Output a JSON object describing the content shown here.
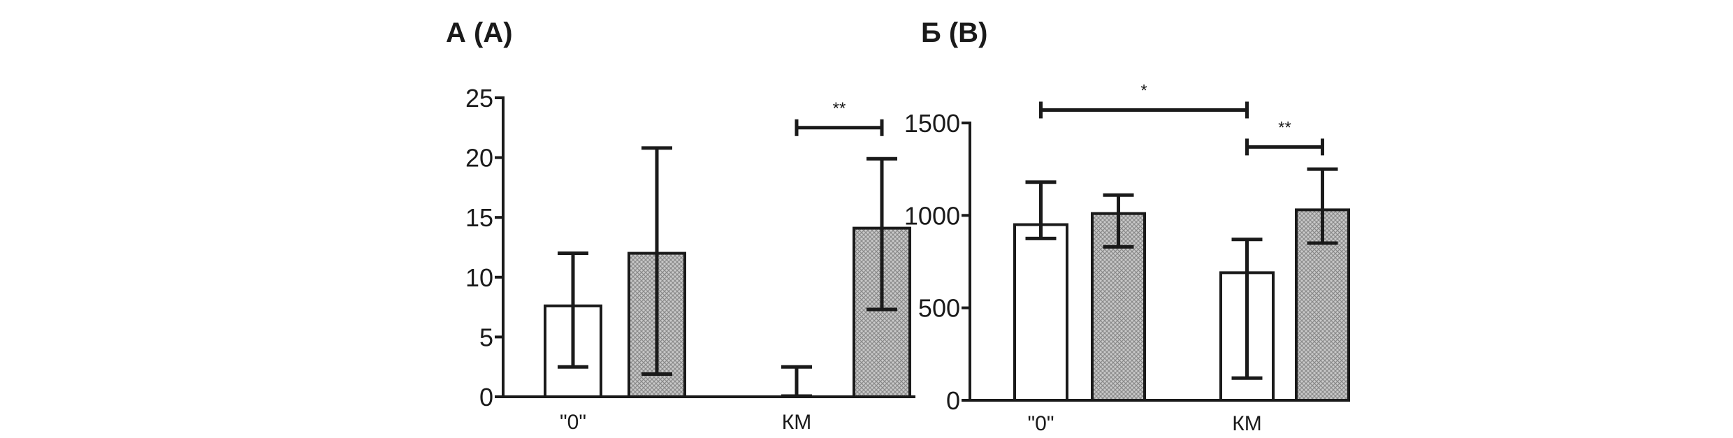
{
  "chart_data": [
    {
      "type": "bar",
      "title": "А (A)",
      "categories": [
        "\"0\"",
        "КМ"
      ],
      "ylim": [
        0,
        25
      ],
      "yticks": [
        0,
        5,
        10,
        15,
        20,
        25
      ],
      "series": [
        {
          "fill": "white",
          "values": [
            7.6,
            0
          ],
          "error_low": [
            2.5,
            0
          ],
          "error_high": [
            12.0,
            2.5
          ]
        },
        {
          "fill": "hatched",
          "values": [
            12.0,
            14.1
          ],
          "error_low": [
            1.9,
            7.3
          ],
          "error_high": [
            20.8,
            19.9
          ]
        }
      ],
      "significance": [
        {
          "label": "**",
          "category": 1,
          "from_series": 0,
          "to_series": 1,
          "level": 22.5
        }
      ]
    },
    {
      "type": "bar",
      "title": "Б (B)",
      "categories": [
        "\"0\"",
        "КМ"
      ],
      "ylim": [
        0,
        1500
      ],
      "yticks": [
        0,
        500,
        1000,
        1500
      ],
      "series": [
        {
          "fill": "white",
          "values": [
            950,
            690
          ],
          "error_low": [
            875,
            120
          ],
          "error_high": [
            1180,
            870
          ]
        },
        {
          "fill": "hatched",
          "values": [
            1010,
            1030
          ],
          "error_low": [
            830,
            850
          ],
          "error_high": [
            1110,
            1250
          ]
        }
      ],
      "significance": [
        {
          "label": "*",
          "from_category": 0,
          "from_series": 0,
          "to_category": 1,
          "to_series": 0,
          "level": 1570
        },
        {
          "label": "**",
          "category": 1,
          "from_series": 0,
          "to_series": 1,
          "level": 1370
        }
      ]
    }
  ]
}
